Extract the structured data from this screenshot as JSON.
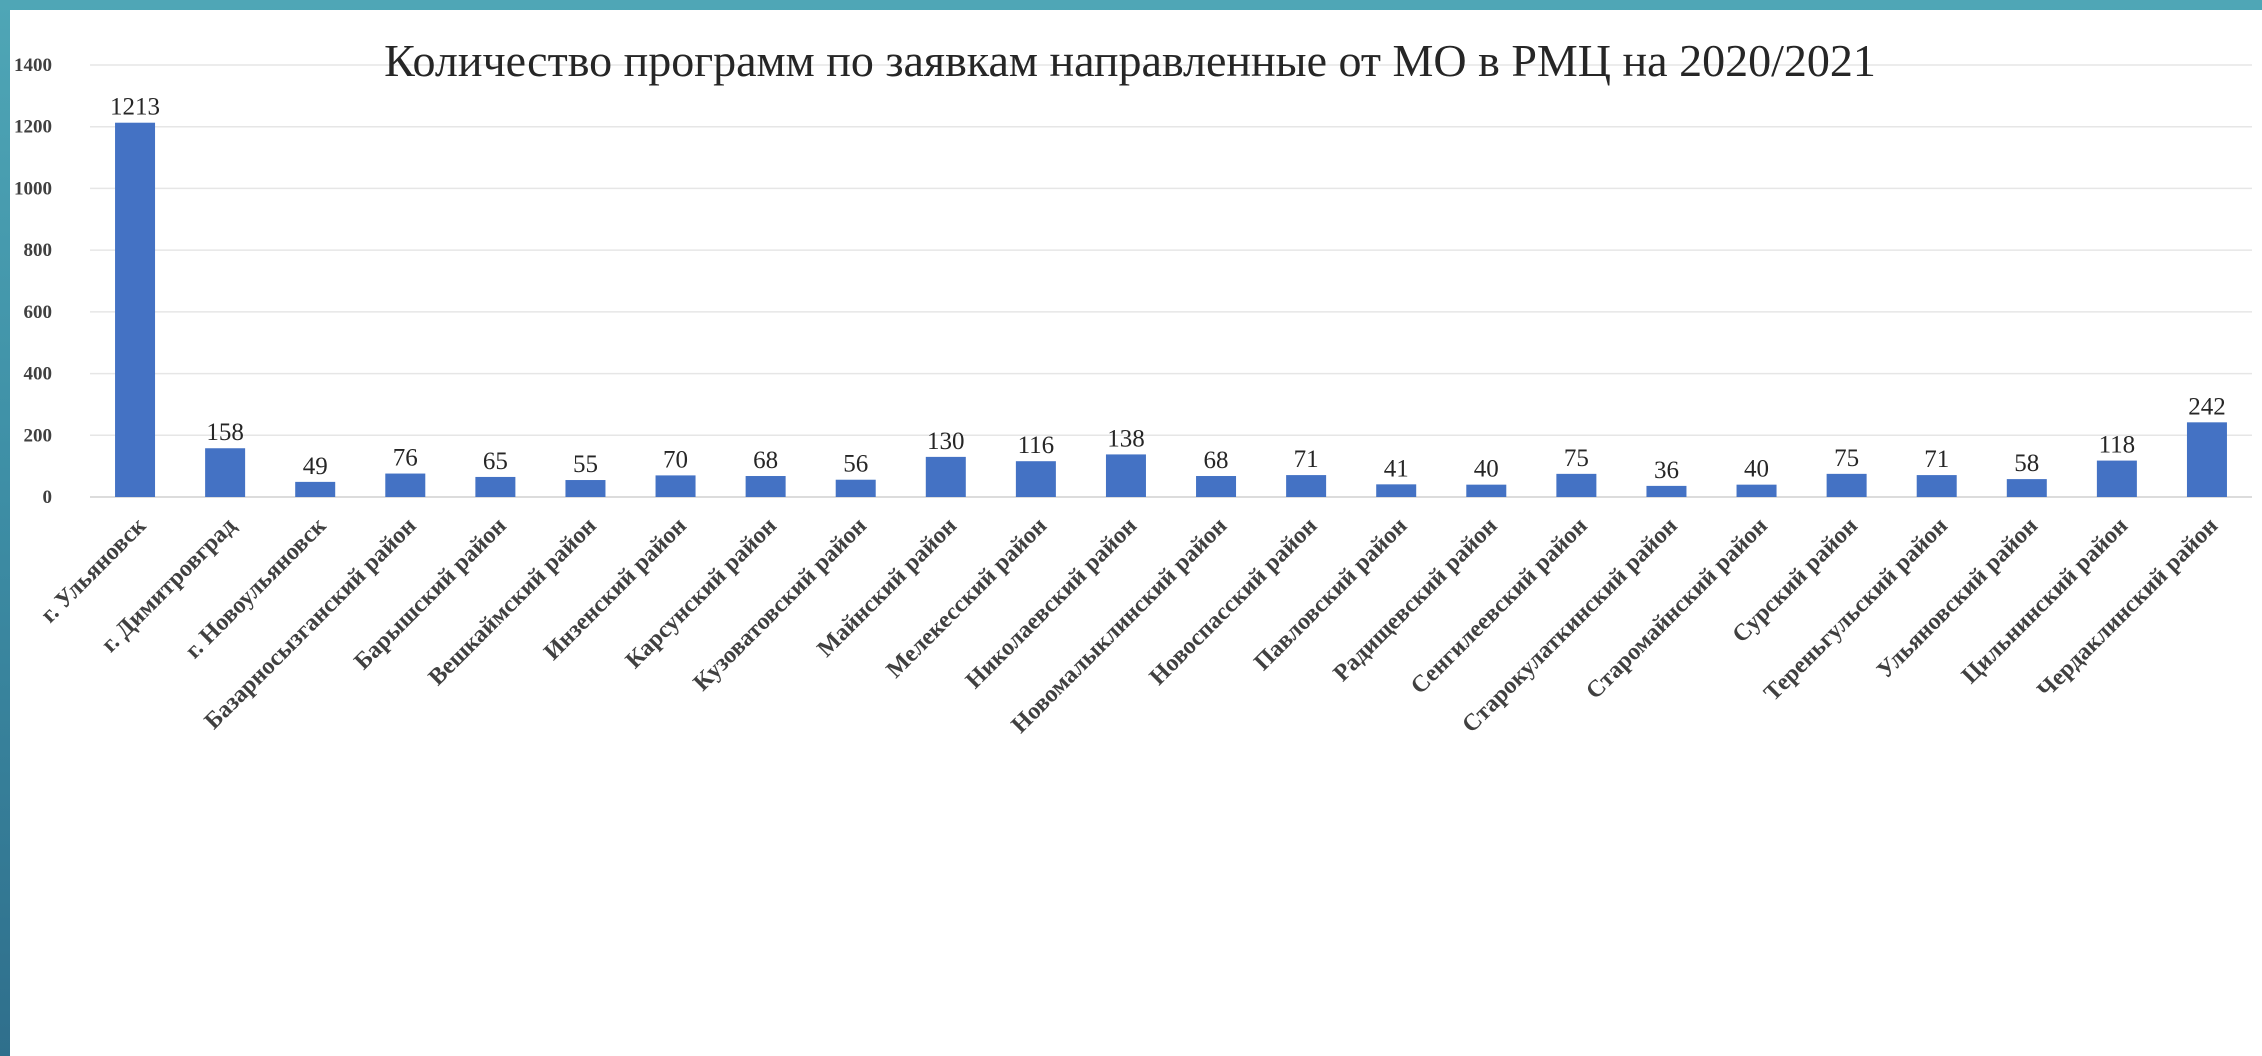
{
  "chart_data": {
    "type": "bar",
    "title": "Количество программ по заявкам направленные от МО в РМЦ на 2020/2021",
    "xlabel": "",
    "ylabel": "",
    "ylim": [
      0,
      1400
    ],
    "yticks": [
      0,
      200,
      400,
      600,
      800,
      1000,
      1200,
      1400
    ],
    "grid": true,
    "legend": "none",
    "bar_color": "#4472c4",
    "categories": [
      "г. Ульяновск",
      "г. Димитровград",
      "г. Новоульяновск",
      "Базарносызганский район",
      "Барышский район",
      "Вешкаймский район",
      "Инзенский район",
      "Карсунский район",
      "Кузоватовский район",
      "Майнский район",
      "Мелекесский район",
      "Николаевский район",
      "Новомалыклинский район",
      "Новоспасский район",
      "Павловский район",
      "Радищевский район",
      "Сенгилеевский район",
      "Старокулаткинский район",
      "Старомайнский район",
      "Сурский район",
      "Тереньгульский район",
      "Ульяновский район",
      "Цильнинский район",
      "Чердаклинский район"
    ],
    "values": [
      1213,
      158,
      49,
      76,
      65,
      55,
      70,
      68,
      56,
      130,
      116,
      138,
      68,
      71,
      41,
      40,
      75,
      36,
      40,
      75,
      71,
      58,
      118,
      242
    ]
  }
}
